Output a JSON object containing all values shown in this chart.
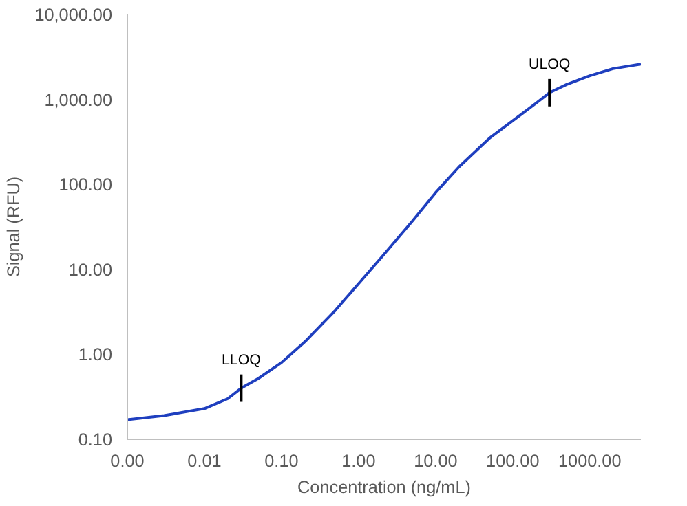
{
  "chart_data": {
    "type": "line",
    "xlabel": "Concentration (ng/mL)",
    "ylabel": "Signal (RFU)",
    "log": "xy",
    "x": [
      0.001,
      0.003,
      0.01,
      0.02,
      0.03,
      0.05,
      0.1,
      0.2,
      0.5,
      1,
      2,
      5,
      10,
      20,
      50,
      100,
      200,
      300,
      500,
      1000,
      2000,
      4600
    ],
    "series": [
      {
        "color": "#1f3fbf",
        "values": [
          0.17,
          0.19,
          0.23,
          0.3,
          0.4,
          0.52,
          0.8,
          1.4,
          3.3,
          6.8,
          14,
          37,
          80,
          160,
          350,
          560,
          900,
          1200,
          1500,
          1900,
          2300,
          2600
        ]
      }
    ],
    "xlim": [
      0.001,
      4600
    ],
    "ylim": [
      0.1,
      10000
    ],
    "xticks": [
      {
        "value": 0.001,
        "label": "0.00"
      },
      {
        "value": 0.01,
        "label": "0.01"
      },
      {
        "value": 0.1,
        "label": "0.10"
      },
      {
        "value": 1,
        "label": "1.00"
      },
      {
        "value": 10,
        "label": "10.00"
      },
      {
        "value": 100,
        "label": "100.00"
      },
      {
        "value": 1000,
        "label": "1000.00"
      }
    ],
    "yticks": [
      {
        "value": 0.1,
        "label": "0.10"
      },
      {
        "value": 1,
        "label": "1.00"
      },
      {
        "value": 10,
        "label": "10.00"
      },
      {
        "value": 100,
        "label": "100.00"
      },
      {
        "value": 1000,
        "label": "1,000.00"
      },
      {
        "value": 10000,
        "label": "10,000.00"
      }
    ],
    "annotations": [
      {
        "text": "LLOQ",
        "x": 0.03,
        "y": 0.4
      },
      {
        "text": "ULOQ",
        "x": 300,
        "y": 1200
      }
    ],
    "grid": false,
    "marker": "none",
    "line_style": "solid"
  }
}
